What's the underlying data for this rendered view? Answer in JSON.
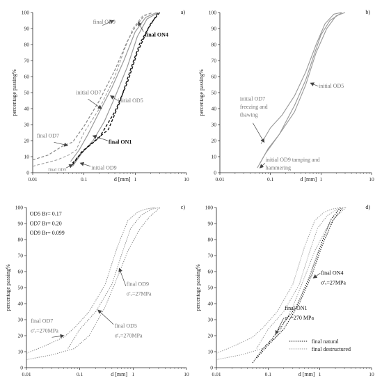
{
  "figure": {
    "colors": {
      "axis": "#222222",
      "black": "#111111",
      "gray": "#777777",
      "light": "#9a9a9a"
    }
  },
  "chart_data": [
    {
      "id": "a",
      "type": "line",
      "panel_label": "a)",
      "xlabel": "d [mm]",
      "ylabel": "percentage passing%",
      "xscale": "log",
      "xlim": [
        0.01,
        10
      ],
      "ylim": [
        0,
        100
      ],
      "xticks": [
        "0.01",
        "0.1",
        "1",
        "10"
      ],
      "yticks": [
        "0",
        "10",
        "20",
        "30",
        "40",
        "50",
        "60",
        "70",
        "80",
        "90",
        "100"
      ],
      "grid": false,
      "series": [
        {
          "style": "dashed",
          "color": "#888888",
          "width": 1.2,
          "x": [
            0.01,
            0.02,
            0.04,
            0.06,
            0.1,
            0.2,
            0.4,
            0.7,
            1,
            1.5,
            2.2
          ],
          "y": [
            8,
            11,
            17,
            19,
            29,
            45,
            64,
            82,
            91,
            98,
            100
          ]
        },
        {
          "style": "dashed",
          "color": "#999999",
          "width": 1.0,
          "x": [
            0.01,
            0.03,
            0.05,
            0.07,
            0.1,
            0.2,
            0.4,
            0.6,
            0.9,
            1.4,
            2.2
          ],
          "y": [
            4,
            8,
            11,
            14,
            25,
            40,
            60,
            76,
            90,
            98,
            100
          ]
        },
        {
          "style": "solid",
          "color": "#9a9a9a",
          "width": 1.2,
          "x": [
            0.055,
            0.08,
            0.12,
            0.2,
            0.35,
            0.6,
            1.0,
            1.6,
            2.6
          ],
          "y": [
            7,
            14,
            24,
            38,
            53,
            70,
            88,
            97,
            100
          ]
        },
        {
          "style": "solid",
          "color": "#9a9a9a",
          "width": 1.2,
          "x": [
            0.06,
            0.09,
            0.15,
            0.25,
            0.4,
            0.7,
            1.1,
            1.7,
            2.8
          ],
          "y": [
            4,
            12,
            20,
            32,
            47,
            66,
            85,
            96,
            100
          ]
        },
        {
          "style": "dashed",
          "color": "#111111",
          "width": 1.4,
          "x": [
            0.06,
            0.09,
            0.15,
            0.3,
            0.5,
            0.8,
            1.2,
            2.0,
            3.0
          ],
          "y": [
            5,
            13,
            19,
            27,
            44,
            64,
            80,
            93,
            100
          ]
        },
        {
          "style": "dashed",
          "color": "#111111",
          "width": 1.4,
          "x": [
            0.06,
            0.1,
            0.2,
            0.4,
            0.7,
            1.1,
            1.8,
            2.8
          ],
          "y": [
            6,
            14,
            22,
            38,
            56,
            75,
            90,
            100
          ]
        }
      ],
      "annotations": [
        {
          "text": "final OD9",
          "color": "#777777",
          "bold": false,
          "x": 0.15,
          "y": 93
        },
        {
          "text": "final ON4",
          "color": "#111111",
          "bold": true,
          "x": 1.55,
          "y": 85
        },
        {
          "text": "initial OD7",
          "color": "#777777",
          "bold": false,
          "x": 0.07,
          "y": 49
        },
        {
          "text": "initial OD5",
          "color": "#777777",
          "bold": false,
          "x": 0.46,
          "y": 44
        },
        {
          "text": "final OD7",
          "color": "#777777",
          "bold": false,
          "x": 0.012,
          "y": 22
        },
        {
          "text": "final ON1",
          "color": "#111111",
          "bold": true,
          "x": 0.3,
          "y": 18
        },
        {
          "text": "initial OD9",
          "color": "#777777",
          "bold": false,
          "x": 0.14,
          "y": 2
        },
        {
          "text": "final OD5",
          "color": "#777777",
          "bold": false,
          "x": 0.02,
          "y": 1,
          "small": true
        }
      ],
      "arrows": [
        {
          "x1": 0.23,
          "y1": 92,
          "x2": 0.38,
          "y2": 95
        },
        {
          "x1": 1.45,
          "y1": 88,
          "x2": 1.15,
          "y2": 94
        },
        {
          "x1": 0.12,
          "y1": 46,
          "x2": 0.22,
          "y2": 40
        },
        {
          "x1": 0.46,
          "y1": 45,
          "x2": 0.33,
          "y2": 48
        },
        {
          "x1": 0.026,
          "y1": 19,
          "x2": 0.048,
          "y2": 17
        },
        {
          "x1": 0.29,
          "y1": 20,
          "x2": 0.15,
          "y2": 23
        },
        {
          "x1": 0.135,
          "y1": 4,
          "x2": 0.085,
          "y2": 6
        },
        {
          "x1": 0.045,
          "y1": 3,
          "x2": 0.06,
          "y2": 5
        }
      ]
    },
    {
      "id": "b",
      "type": "line",
      "panel_label": "b)",
      "xlabel": "d [mm]",
      "ylabel": "percentage passing%",
      "xscale": "log",
      "xlim": [
        0.01,
        10
      ],
      "ylim": [
        0,
        100
      ],
      "xticks": [
        "0.01",
        "0.1",
        "1",
        "10"
      ],
      "yticks": [
        "0",
        "10",
        "20",
        "30",
        "40",
        "50",
        "60",
        "70",
        "80",
        "90",
        "100"
      ],
      "grid": false,
      "series": [
        {
          "style": "solid",
          "color": "#999999",
          "width": 1.1,
          "x": [
            0.065,
            0.1,
            0.17,
            0.3,
            0.5,
            0.8,
            1.2,
            1.8,
            2.5
          ],
          "y": [
            18,
            28,
            36,
            48,
            63,
            80,
            93,
            99,
            100
          ]
        },
        {
          "style": "solid",
          "color": "#999999",
          "width": 1.1,
          "x": [
            0.06,
            0.09,
            0.15,
            0.3,
            0.5,
            0.8,
            1.3,
            2.0,
            3.0
          ],
          "y": [
            5,
            15,
            24,
            38,
            55,
            75,
            90,
            98,
            100
          ]
        },
        {
          "style": "solid",
          "color": "#999999",
          "width": 1.1,
          "x": [
            0.055,
            0.08,
            0.15,
            0.3,
            0.5,
            0.7,
            1.0,
            1.5,
            2.6
          ],
          "y": [
            3,
            12,
            24,
            42,
            58,
            72,
            86,
            95,
            100
          ]
        }
      ],
      "annotations": [
        {
          "text": "initial OD5",
          "color": "#777777",
          "bold": false,
          "x": 0.9,
          "y": 53
        },
        {
          "text": "initial OD7",
          "color": "#777777",
          "bold": false,
          "x": 0.025,
          "y": 45
        },
        {
          "text": "freezing and",
          "color": "#777777",
          "bold": false,
          "x": 0.025,
          "y": 40
        },
        {
          "text": "thawing",
          "color": "#777777",
          "bold": false,
          "x": 0.025,
          "y": 35
        },
        {
          "text": "initial OD9  tamping and",
          "color": "#777777",
          "bold": false,
          "x": 0.08,
          "y": 7
        },
        {
          "text": "hammering",
          "color": "#777777",
          "bold": false,
          "x": 0.08,
          "y": 2
        }
      ],
      "arrows": [
        {
          "x1": 0.88,
          "y1": 54,
          "x2": 0.62,
          "y2": 56
        },
        {
          "x1": 0.045,
          "y1": 31,
          "x2": 0.075,
          "y2": 19
        },
        {
          "x1": 0.078,
          "y1": 6,
          "x2": 0.062,
          "y2": 3
        }
      ]
    },
    {
      "id": "c",
      "type": "line",
      "panel_label": "c)",
      "xlabel": "d [mm]",
      "ylabel": "percentage passing%",
      "xscale": "log",
      "xlim": [
        0.01,
        10
      ],
      "ylim": [
        0,
        100
      ],
      "xticks": [
        "0.01",
        "0.1",
        "1",
        "10"
      ],
      "yticks": [
        "0",
        "10",
        "20",
        "30",
        "40",
        "50",
        "60",
        "70",
        "80",
        "90",
        "100"
      ],
      "grid": false,
      "series": [
        {
          "style": "dotted",
          "color": "#888888",
          "width": 1.0,
          "x": [
            0.01,
            0.02,
            0.05,
            0.08,
            0.15,
            0.3,
            0.5,
            0.8,
            1.2,
            1.7,
            2.6
          ],
          "y": [
            9,
            13,
            19,
            25,
            35,
            52,
            75,
            92,
            97,
            99,
            100
          ]
        },
        {
          "style": "dotted",
          "color": "#888888",
          "width": 1.0,
          "x": [
            0.06,
            0.1,
            0.2,
            0.4,
            0.6,
            0.9,
            1.4,
            2.2,
            3.2
          ],
          "y": [
            12,
            24,
            35,
            52,
            70,
            87,
            95,
            99,
            100
          ]
        },
        {
          "style": "dotted",
          "color": "#888888",
          "width": 1.0,
          "x": [
            0.01,
            0.03,
            0.08,
            0.15,
            0.3,
            0.5,
            0.8,
            1.3,
            2.0,
            3.2
          ],
          "y": [
            5,
            8,
            12,
            20,
            38,
            56,
            73,
            86,
            94,
            100
          ]
        }
      ],
      "annotations": [
        {
          "text": "OD5  Br= 0.17",
          "color": "#222222",
          "bold": false,
          "x": 0.0115,
          "y": 95
        },
        {
          "text": "OD7  Br= 0.20",
          "color": "#222222",
          "bold": false,
          "x": 0.0115,
          "y": 89
        },
        {
          "text": "OD9  Br= 0.099",
          "color": "#222222",
          "bold": false,
          "x": 0.0115,
          "y": 83
        },
        {
          "text": "final OD9",
          "color": "#777777",
          "bold": false,
          "x": 0.75,
          "y": 51
        },
        {
          "text": "σ'ᵥ=27MPa",
          "color": "#777777",
          "bold": false,
          "x": 0.75,
          "y": 45
        },
        {
          "text": "final OD7",
          "color": "#777777",
          "bold": false,
          "x": 0.012,
          "y": 28
        },
        {
          "text": "σ'ᵥ=270MPa",
          "color": "#777777",
          "bold": false,
          "x": 0.012,
          "y": 22
        },
        {
          "text": "final OD5",
          "color": "#777777",
          "bold": false,
          "x": 0.45,
          "y": 25
        },
        {
          "text": "σ'ᵥ=270MPa",
          "color": "#777777",
          "bold": false,
          "x": 0.45,
          "y": 19
        }
      ],
      "arrows": [
        {
          "x1": 0.73,
          "y1": 51,
          "x2": 0.55,
          "y2": 62
        },
        {
          "x1": 0.03,
          "y1": 19,
          "x2": 0.05,
          "y2": 20
        },
        {
          "x1": 0.43,
          "y1": 27,
          "x2": 0.22,
          "y2": 36
        }
      ]
    },
    {
      "id": "d",
      "type": "line",
      "panel_label": "d)",
      "xlabel": "d [mm]",
      "ylabel": "percentage passing%",
      "xscale": "log",
      "xlim": [
        0.01,
        10
      ],
      "ylim": [
        0,
        100
      ],
      "xticks": [
        "0.01",
        "0.1",
        "1",
        "10"
      ],
      "yticks": [
        "0",
        "10",
        "20",
        "30",
        "40",
        "50",
        "60",
        "70",
        "80",
        "90",
        "100"
      ],
      "grid": false,
      "series": [
        {
          "style": "dotted",
          "color": "#999999",
          "width": 1.0,
          "x": [
            0.01,
            0.02,
            0.05,
            0.08,
            0.15,
            0.3,
            0.5,
            0.8,
            1.2,
            1.7,
            2.6
          ],
          "y": [
            9,
            13,
            19,
            25,
            35,
            52,
            75,
            92,
            97,
            99,
            100
          ]
        },
        {
          "style": "dotted",
          "color": "#999999",
          "width": 1.0,
          "x": [
            0.06,
            0.1,
            0.2,
            0.4,
            0.6,
            0.9,
            1.4,
            2.2,
            3.2
          ],
          "y": [
            12,
            24,
            35,
            52,
            70,
            87,
            95,
            99,
            100
          ]
        },
        {
          "style": "dotted",
          "color": "#999999",
          "width": 1.0,
          "x": [
            0.01,
            0.03,
            0.08,
            0.15,
            0.3,
            0.5,
            0.8,
            1.3,
            2.0,
            3.2
          ],
          "y": [
            5,
            8,
            12,
            20,
            38,
            56,
            73,
            86,
            94,
            100
          ]
        },
        {
          "style": "dotted",
          "color": "#111111",
          "width": 1.1,
          "x": [
            0.05,
            0.08,
            0.12,
            0.2,
            0.35,
            0.6,
            1.0,
            1.6,
            2.5
          ],
          "y": [
            3,
            12,
            18,
            28,
            38,
            55,
            75,
            92,
            100
          ]
        },
        {
          "style": "dotted",
          "color": "#111111",
          "width": 1.1,
          "x": [
            0.06,
            0.1,
            0.2,
            0.4,
            0.7,
            1.1,
            1.8,
            2.8
          ],
          "y": [
            6,
            14,
            24,
            40,
            58,
            76,
            92,
            100
          ]
        }
      ],
      "annotations": [
        {
          "text": "final ON4",
          "color": "#111111",
          "bold": false,
          "x": 1.05,
          "y": 58
        },
        {
          "text": "σ'ᵥ=27MPa",
          "color": "#111111",
          "bold": false,
          "x": 1.05,
          "y": 52
        },
        {
          "text": "final ON1",
          "color": "#111111",
          "bold": false,
          "x": 0.21,
          "y": 36
        },
        {
          "text": "σ'ᵥ=270 MPa",
          "color": "#111111",
          "bold": false,
          "x": 0.21,
          "y": 30
        }
      ],
      "arrows": [
        {
          "x1": 1.02,
          "y1": 59,
          "x2": 0.75,
          "y2": 56
        },
        {
          "x1": 0.2,
          "y1": 31,
          "x2": 0.14,
          "y2": 21
        }
      ],
      "legend": {
        "position": "bottom-right",
        "entries": [
          {
            "label": "final natural",
            "color": "#111111",
            "style": "dotted"
          },
          {
            "label": "final destructured",
            "color": "#999999",
            "style": "dotted"
          }
        ]
      }
    }
  ]
}
